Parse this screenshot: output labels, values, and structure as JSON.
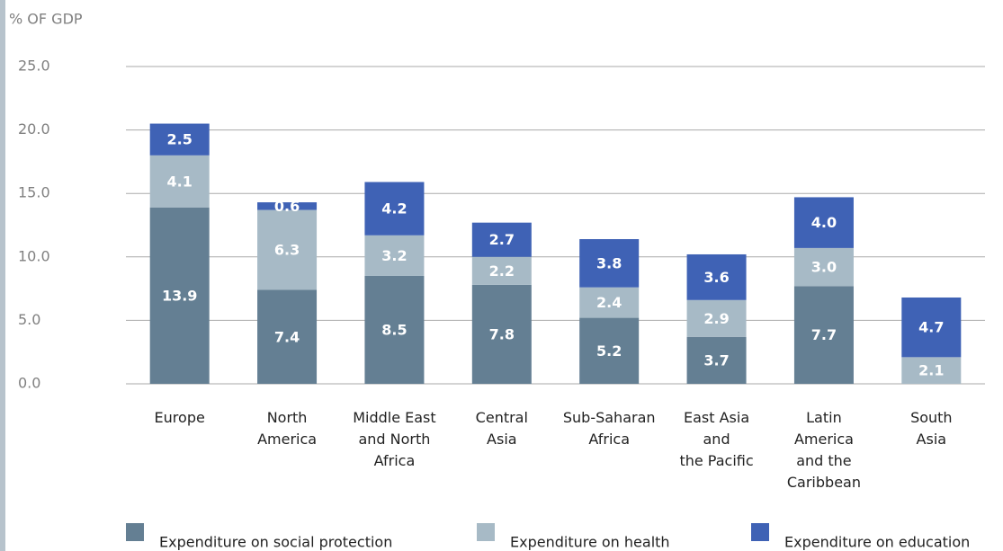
{
  "chart_data": {
    "type": "stacked-bar",
    "y_axis_label": "% OF GDP",
    "categories": [
      "Europe",
      "North\nAmerica",
      "Middle East\nand North\nAfrica",
      "Central\nAsia",
      "Sub-Saharan\nAfrica",
      "East Asia\nand\nthe Pacific",
      "Latin\nAmerica\nand the\nCaribbean",
      "South\nAsia"
    ],
    "series": [
      {
        "name": "Expenditure on social protection",
        "color": "#647f93",
        "values": [
          13.9,
          7.4,
          8.5,
          7.8,
          5.2,
          3.7,
          7.7,
          null
        ],
        "value_labels": [
          "13.9",
          "7.4",
          "8.5",
          "7.8",
          "5.2",
          "3.7",
          "7.7",
          null
        ]
      },
      {
        "name": "Expenditure on health",
        "color": "#a7bac6",
        "values": [
          4.1,
          6.3,
          3.2,
          2.2,
          2.4,
          2.9,
          3.0,
          2.1
        ],
        "value_labels": [
          "4.1",
          "6.3",
          "3.2",
          "2.2",
          "2.4",
          "2.9",
          "3.0",
          "2.1"
        ]
      },
      {
        "name": "Expenditure on education",
        "color": "#3f62b5",
        "values": [
          2.5,
          0.6,
          4.2,
          2.7,
          3.8,
          3.6,
          4.0,
          4.7
        ],
        "value_labels": [
          "2.5",
          "0.6",
          "4.2",
          "2.7",
          "3.8",
          "3.6",
          "4.0",
          "4.7"
        ]
      }
    ],
    "ylim": [
      0,
      25
    ],
    "yticks": [
      {
        "value": 0,
        "label": "0.0"
      },
      {
        "value": 5,
        "label": "5.0"
      },
      {
        "value": 10,
        "label": "10.0"
      },
      {
        "value": 15,
        "label": "15.0"
      },
      {
        "value": 20,
        "label": "20.0"
      },
      {
        "value": 25,
        "label": "25.0"
      }
    ],
    "grid": true
  }
}
